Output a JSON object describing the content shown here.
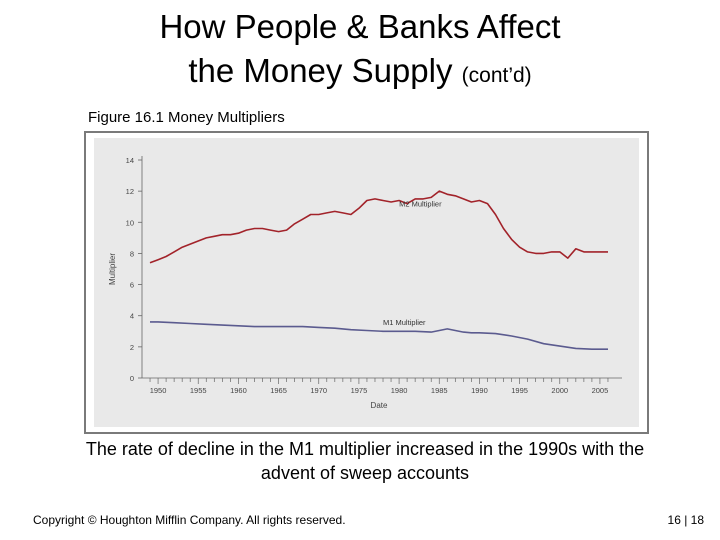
{
  "slide": {
    "title_line1": "How People & Banks Affect",
    "title_line2": "the Money Supply",
    "title_suffix": "(cont’d)",
    "figure_caption": "Figure 16.1 Money Multipliers",
    "note": "The rate of decline in the M1 multiplier increased in the 1990s with the advent of sweep accounts",
    "copyright": "Copyright © Houghton Mifflin Company. All rights reserved.",
    "page": "16 | 18"
  },
  "colors": {
    "m2": "#a2232a",
    "m1": "#5b5b8f",
    "plot_bg": "#e9e9e9",
    "axis": "#666666"
  },
  "chart_data": {
    "type": "line",
    "title": "",
    "xlabel": "Date",
    "ylabel": "Multiplier",
    "xlim": [
      1948,
      2007
    ],
    "ylim": [
      0,
      14
    ],
    "xticks": [
      1950,
      1955,
      1960,
      1965,
      1970,
      1975,
      1980,
      1985,
      1990,
      1995,
      2000,
      2005
    ],
    "yticks": [
      0,
      2,
      4,
      6,
      8,
      10,
      12,
      14
    ],
    "series": [
      {
        "name": "M2 Multiplier",
        "x": [
          1949,
          1950,
          1951,
          1952,
          1953,
          1954,
          1955,
          1956,
          1957,
          1958,
          1959,
          1960,
          1961,
          1962,
          1963,
          1964,
          1965,
          1966,
          1967,
          1968,
          1969,
          1970,
          1971,
          1972,
          1973,
          1974,
          1975,
          1976,
          1977,
          1978,
          1979,
          1980,
          1981,
          1982,
          1983,
          1984,
          1985,
          1986,
          1987,
          1988,
          1989,
          1990,
          1991,
          1992,
          1993,
          1994,
          1995,
          1996,
          1997,
          1998,
          1999,
          2000,
          2001,
          2002,
          2003,
          2004,
          2005,
          2006
        ],
        "values": [
          7.4,
          7.6,
          7.8,
          8.1,
          8.4,
          8.6,
          8.8,
          9.0,
          9.1,
          9.2,
          9.2,
          9.3,
          9.5,
          9.6,
          9.6,
          9.5,
          9.4,
          9.5,
          9.9,
          10.2,
          10.5,
          10.5,
          10.6,
          10.7,
          10.6,
          10.5,
          10.9,
          11.4,
          11.5,
          11.4,
          11.3,
          11.4,
          11.2,
          11.5,
          11.5,
          11.6,
          12.0,
          11.8,
          11.7,
          11.5,
          11.3,
          11.4,
          11.2,
          10.5,
          9.6,
          8.9,
          8.4,
          8.1,
          8.0,
          8.0,
          8.1,
          8.1,
          7.7,
          8.3,
          8.1,
          8.1,
          8.1,
          8.1
        ]
      },
      {
        "name": "M1 Multiplier",
        "x": [
          1949,
          1950,
          1952,
          1954,
          1956,
          1958,
          1960,
          1962,
          1964,
          1966,
          1968,
          1970,
          1972,
          1974,
          1976,
          1978,
          1980,
          1982,
          1984,
          1985,
          1986,
          1987,
          1988,
          1989,
          1990,
          1992,
          1994,
          1996,
          1998,
          2000,
          2002,
          2004,
          2006
        ],
        "values": [
          3.6,
          3.6,
          3.55,
          3.5,
          3.45,
          3.4,
          3.35,
          3.3,
          3.3,
          3.3,
          3.3,
          3.25,
          3.2,
          3.1,
          3.05,
          3.0,
          3.0,
          3.0,
          2.95,
          3.05,
          3.15,
          3.05,
          2.95,
          2.9,
          2.9,
          2.85,
          2.7,
          2.5,
          2.2,
          2.05,
          1.9,
          1.85,
          1.85
        ]
      }
    ],
    "annotations": [
      "M2 Multiplier",
      "M1 Multiplier"
    ],
    "grid": false
  }
}
